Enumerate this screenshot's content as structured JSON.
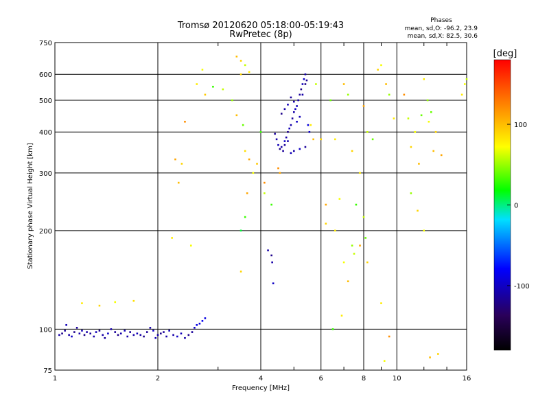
{
  "chart_data": {
    "type": "scatter",
    "title": "Tromsø 20120620 05:18:00-05:19:43",
    "subtitle": "RwPretec (8p)",
    "stats": {
      "heading": "Phases",
      "line1": "mean, sd,O: -96.2, 23.9",
      "line2": "mean, sd,X:  82.5, 30.6"
    },
    "xlabel": "Frequency [MHz]",
    "ylabel": "Stationary phase Virtual Height [km]",
    "x_scale": "log",
    "y_scale": "log",
    "xlim": [
      1,
      16
    ],
    "ylim": [
      75,
      750
    ],
    "x_ticks": [
      1,
      2,
      4,
      6,
      8,
      10,
      16
    ],
    "x_tick_labels": [
      "1",
      "2",
      "4",
      "6",
      "8",
      "10",
      "16"
    ],
    "y_ticks": [
      75,
      100,
      200,
      300,
      400,
      500,
      600,
      750
    ],
    "y_tick_labels": [
      "75",
      "100",
      "200",
      "300",
      "400",
      "500",
      "600",
      "750"
    ],
    "grid": true,
    "colorbar": {
      "label": "[deg]",
      "range": [
        -180,
        180
      ],
      "ticks": [
        100,
        0,
        -100
      ],
      "tick_labels": [
        "100",
        "0",
        "-100"
      ],
      "colors": [
        "#000000",
        "#2a005a",
        "#0000ff",
        "#00e0ff",
        "#00ff00",
        "#ffff00",
        "#ff8000",
        "#ff0000"
      ]
    },
    "series": [
      {
        "name": "",
        "x": [
          1.03,
          1.05,
          1.07,
          1.08,
          1.1,
          1.12,
          1.14,
          1.16,
          1.18,
          1.2,
          1.22,
          1.24,
          1.27,
          1.3,
          1.32,
          1.35,
          1.38,
          1.4,
          1.43,
          1.46,
          1.5,
          1.53,
          1.56,
          1.6,
          1.63,
          1.66,
          1.7,
          1.74,
          1.78,
          1.82,
          1.86,
          1.9,
          1.94,
          1.97,
          2.0,
          2.04,
          2.08,
          2.12,
          2.16,
          2.22,
          2.28,
          2.34,
          2.4,
          2.46,
          2.52,
          2.56,
          2.6,
          2.65,
          2.7,
          2.75,
          4.2,
          4.3,
          4.32,
          4.35,
          4.4,
          4.45,
          4.5,
          4.55,
          4.6,
          4.65,
          4.7,
          4.75,
          4.8,
          4.85,
          4.9,
          4.95,
          5.0,
          5.05,
          5.1,
          5.15,
          5.2,
          5.25,
          5.3,
          5.35,
          5.4,
          5.45,
          5.5,
          5.55,
          4.6,
          4.7,
          4.8,
          4.9,
          5.0,
          5.1,
          5.2,
          5.3,
          5.4,
          4.7,
          4.8,
          4.9,
          5.0,
          5.2,
          5.4,
          4.5,
          4.55
        ],
        "y": [
          96,
          97,
          99,
          103,
          96,
          95,
          98,
          101,
          97,
          99,
          96,
          98,
          97,
          95,
          98,
          99,
          96,
          94,
          97,
          100,
          98,
          96,
          97,
          99,
          95,
          98,
          96,
          97,
          96,
          95,
          98,
          101,
          99,
          94,
          96,
          97,
          98,
          95,
          99,
          96,
          95,
          97,
          94,
          96,
          98,
          101,
          103,
          104,
          106,
          108,
          174,
          168,
          160,
          138,
          395,
          380,
          365,
          355,
          360,
          350,
          375,
          385,
          400,
          410,
          420,
          440,
          460,
          470,
          480,
          500,
          520,
          540,
          560,
          580,
          600,
          575,
          420,
          400,
          455,
          470,
          485,
          510,
          495,
          430,
          445,
          520,
          560,
          365,
          375,
          345,
          350,
          355,
          360,
          310,
          300
        ],
        "phase": [
          -110,
          -120,
          -115,
          -105,
          -110,
          -100,
          -120,
          -115,
          -110,
          -105,
          -120,
          -110,
          -115,
          -110,
          -105,
          -120,
          -110,
          -115,
          -100,
          -110,
          -115,
          -120,
          -110,
          -105,
          -110,
          -115,
          -110,
          -105,
          -110,
          -120,
          -115,
          -110,
          -100,
          -105,
          -110,
          -120,
          -115,
          -110,
          -105,
          -110,
          -100,
          -105,
          -110,
          -120,
          -115,
          -100,
          -90,
          -95,
          -85,
          -90,
          -110,
          -120,
          -110,
          -100,
          -115,
          -110,
          -105,
          -120,
          -110,
          -115,
          -100,
          -110,
          -120,
          -105,
          -110,
          -115,
          -110,
          -100,
          -105,
          -110,
          -115,
          -120,
          -105,
          -100,
          -110,
          -115,
          -90,
          -100,
          -120,
          -110,
          -105,
          -115,
          -110,
          -100,
          -105,
          -110,
          -120,
          -115,
          -110,
          -105,
          -110,
          -100,
          -115,
          120,
          110
        ]
      },
      {
        "name": "",
        "x": [
          1.2,
          1.35,
          1.5,
          1.7,
          2.25,
          2.3,
          2.35,
          2.4,
          2.6,
          2.7,
          2.75,
          2.9,
          3.1,
          3.3,
          3.4,
          3.5,
          3.55,
          3.6,
          3.7,
          3.8,
          3.9,
          4.0,
          4.1,
          5.6,
          5.7,
          5.8,
          6.0,
          6.2,
          6.4,
          6.6,
          6.8,
          7.0,
          7.2,
          7.4,
          7.6,
          7.8,
          8.0,
          8.2,
          8.5,
          8.8,
          9.0,
          9.3,
          9.5,
          9.8,
          10.5,
          10.8,
          11.0,
          11.3,
          11.6,
          12.0,
          12.3,
          12.6,
          13.0,
          13.5,
          15.5,
          15.8,
          16.0,
          3.5,
          3.6,
          3.5,
          3.65,
          7.0,
          7.2,
          8.0,
          8.1,
          9.0,
          9.5,
          11.0,
          11.5,
          12.0,
          6.5,
          6.9,
          3.4,
          3.5,
          3.6,
          3.7,
          12.4,
          12.8,
          11.8,
          7.5,
          7.8,
          8.2,
          2.2,
          2.5,
          4.1,
          4.3,
          6.2,
          6.6,
          7.4,
          9.2,
          12.5,
          13.2
        ],
        "y": [
          120,
          118,
          121,
          122,
          330,
          280,
          320,
          430,
          560,
          620,
          520,
          550,
          540,
          500,
          450,
          600,
          420,
          350,
          330,
          300,
          320,
          400,
          280,
          420,
          380,
          560,
          380,
          240,
          500,
          380,
          250,
          560,
          520,
          350,
          240,
          300,
          480,
          400,
          380,
          620,
          640,
          560,
          520,
          440,
          520,
          440,
          360,
          400,
          320,
          580,
          500,
          460,
          400,
          340,
          520,
          560,
          580,
          200,
          220,
          150,
          260,
          160,
          140,
          220,
          190,
          120,
          95,
          260,
          230,
          200,
          100,
          110,
          680,
          660,
          640,
          610,
          430,
          350,
          450,
          170,
          180,
          160,
          190,
          180,
          260,
          240,
          210,
          200,
          180,
          80,
          82,
          84
        ],
        "phase": [
          80,
          90,
          70,
          85,
          110,
          100,
          90,
          120,
          80,
          70,
          95,
          30,
          60,
          50,
          100,
          90,
          40,
          85,
          110,
          70,
          95,
          30,
          120,
          80,
          100,
          60,
          90,
          110,
          40,
          80,
          70,
          100,
          50,
          90,
          30,
          80,
          110,
          60,
          40,
          90,
          70,
          100,
          50,
          80,
          120,
          60,
          90,
          70,
          100,
          80,
          50,
          40,
          90,
          110,
          80,
          70,
          60,
          10,
          30,
          90,
          110,
          70,
          100,
          60,
          40,
          80,
          120,
          50,
          90,
          70,
          30,
          80,
          100,
          90,
          60,
          80,
          70,
          100,
          40,
          60,
          110,
          90,
          80,
          70,
          60,
          30,
          90,
          80,
          50,
          70,
          100,
          90
        ]
      }
    ]
  }
}
